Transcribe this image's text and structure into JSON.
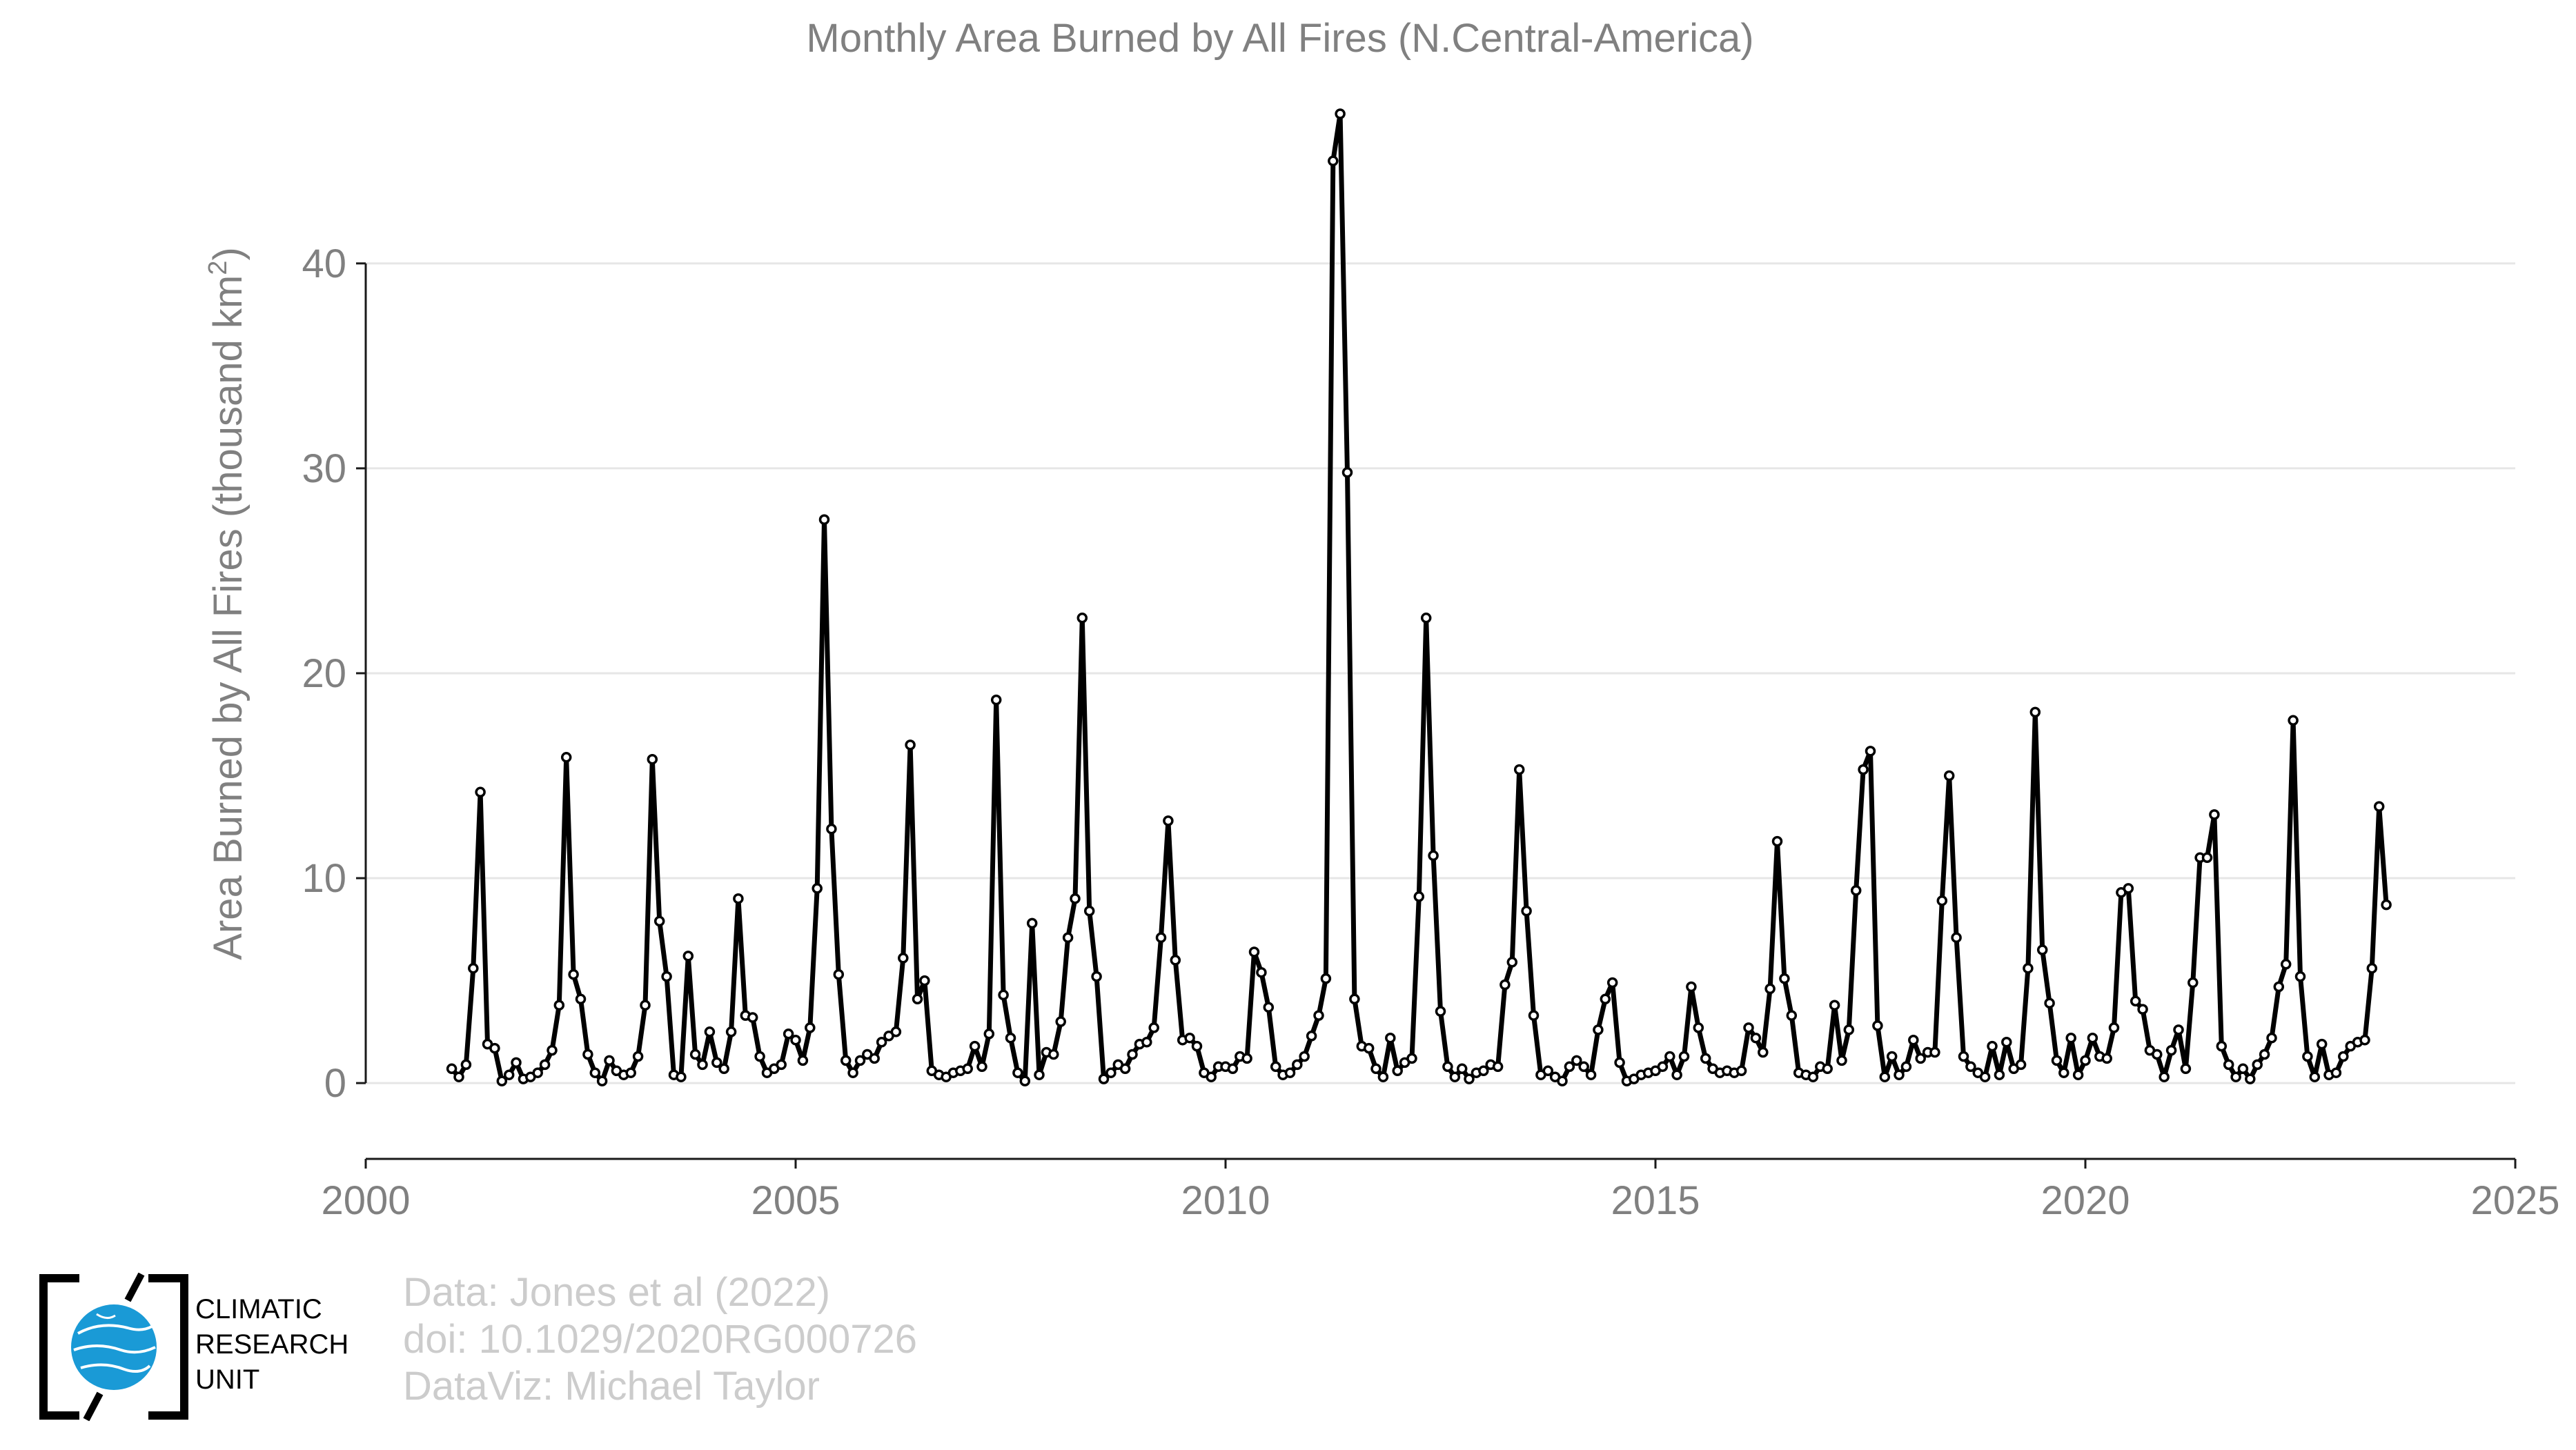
{
  "chart_data": {
    "type": "line",
    "title": "Monthly Area Burned by All Fires (N.Central-America)",
    "ylabel": "Area Burned by All Fires (thousand km",
    "ylabel_superscript": "2",
    "ylabel_close": ")",
    "xlabel": "",
    "xlim": [
      2000,
      2025
    ],
    "ylim": [
      -3.7,
      47.3
    ],
    "x_ticks": [
      2000,
      2005,
      2010,
      2015,
      2020,
      2025
    ],
    "y_ticks": [
      0,
      10,
      20,
      30,
      40
    ],
    "grid": true,
    "legend": "none",
    "start": "2001-01",
    "series": [
      {
        "color": "#000000",
        "values": [
          0.7,
          0.3,
          0.9,
          5.6,
          14.2,
          1.9,
          1.7,
          0.1,
          0.4,
          1.0,
          0.2,
          0.3,
          0.5,
          0.9,
          1.6,
          3.8,
          15.9,
          5.3,
          4.1,
          1.4,
          0.5,
          0.1,
          1.1,
          0.6,
          0.4,
          0.5,
          1.3,
          3.8,
          15.8,
          7.9,
          5.2,
          0.4,
          0.3,
          6.2,
          1.4,
          0.9,
          2.5,
          1.0,
          0.7,
          2.5,
          9.0,
          3.3,
          3.2,
          1.3,
          0.5,
          0.7,
          0.9,
          2.4,
          2.1,
          1.1,
          2.7,
          9.5,
          27.5,
          12.4,
          5.3,
          1.1,
          0.5,
          1.1,
          1.4,
          1.2,
          2.0,
          2.3,
          2.5,
          6.1,
          16.5,
          4.1,
          5.0,
          0.6,
          0.4,
          0.3,
          0.5,
          0.6,
          0.7,
          1.8,
          0.8,
          2.4,
          18.7,
          4.3,
          2.2,
          0.5,
          0.1,
          7.8,
          0.4,
          1.5,
          1.4,
          3.0,
          7.1,
          9.0,
          22.7,
          8.4,
          5.2,
          0.2,
          0.5,
          0.9,
          0.7,
          1.4,
          1.9,
          2.0,
          2.7,
          7.1,
          12.8,
          6.0,
          2.1,
          2.2,
          1.8,
          0.5,
          0.3,
          0.8,
          0.8,
          0.7,
          1.3,
          1.2,
          6.4,
          5.4,
          3.7,
          0.8,
          0.4,
          0.5,
          0.9,
          1.3,
          2.3,
          3.3,
          5.1,
          45.0,
          47.3,
          29.8,
          4.1,
          1.8,
          1.7,
          0.7,
          0.3,
          2.2,
          0.6,
          1.0,
          1.2,
          9.1,
          22.7,
          11.1,
          3.5,
          0.8,
          0.3,
          0.7,
          0.2,
          0.5,
          0.6,
          0.9,
          0.8,
          4.8,
          5.9,
          15.3,
          8.4,
          3.3,
          0.4,
          0.6,
          0.3,
          0.1,
          0.8,
          1.1,
          0.8,
          0.4,
          2.6,
          4.1,
          4.9,
          1.0,
          0.1,
          0.2,
          0.4,
          0.5,
          0.6,
          0.8,
          1.3,
          0.4,
          1.3,
          4.7,
          2.7,
          1.2,
          0.7,
          0.5,
          0.6,
          0.5,
          0.6,
          2.7,
          2.2,
          1.5,
          4.6,
          11.8,
          5.1,
          3.3,
          0.5,
          0.4,
          0.3,
          0.8,
          0.7,
          3.8,
          1.1,
          2.6,
          9.4,
          15.3,
          16.2,
          2.8,
          0.3,
          1.3,
          0.4,
          0.8,
          2.1,
          1.2,
          1.5,
          1.5,
          8.9,
          15.0,
          7.1,
          1.3,
          0.8,
          0.5,
          0.3,
          1.8,
          0.4,
          2.0,
          0.7,
          0.9,
          5.6,
          18.1,
          6.5,
          3.9,
          1.1,
          0.5,
          2.2,
          0.4,
          1.1,
          2.2,
          1.3,
          1.2,
          2.7,
          9.3,
          9.5,
          4.0,
          3.6,
          1.6,
          1.4,
          0.3,
          1.6,
          2.6,
          0.7,
          4.9,
          11.0,
          11.0,
          13.1,
          1.8,
          0.9,
          0.3,
          0.7,
          0.2,
          0.9,
          1.4,
          2.2,
          4.7,
          5.8,
          17.7,
          5.2,
          1.3,
          0.3,
          1.9,
          0.4,
          0.5,
          1.3,
          1.8,
          2.0,
          2.1,
          5.6,
          13.5,
          8.7
        ]
      }
    ]
  },
  "credits": {
    "line1": "Data: Jones et al (2022)",
    "line2": "doi: 10.1029/2020RG000726",
    "line3": "DataViz: Michael Taylor"
  },
  "logo": {
    "icon": "cru-globe-icon",
    "line1": "CLIMATIC",
    "line2": "RESEARCH",
    "line3": "UNIT",
    "globe_color": "#1a9ad6"
  }
}
